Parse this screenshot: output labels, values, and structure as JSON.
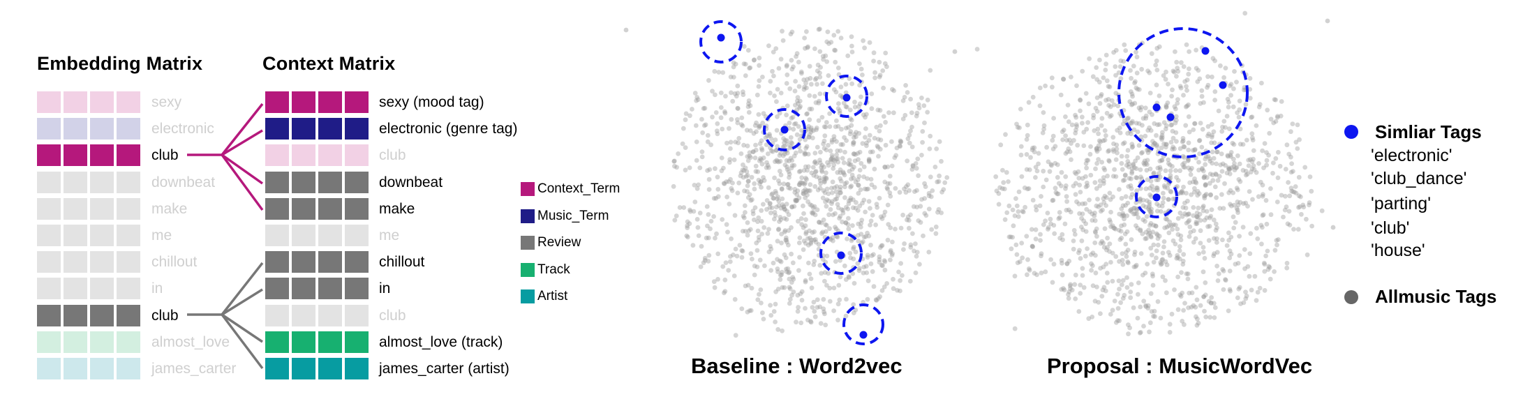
{
  "embedding_title": "Embedding Matrix",
  "context_title": "Context Matrix",
  "embedding_rows": [
    {
      "label": "sexy",
      "color": "#f2d1e5",
      "active": false
    },
    {
      "label": "electronic",
      "color": "#d2d2e8",
      "active": false
    },
    {
      "label": "club",
      "color": "#b5187c",
      "active": true
    },
    {
      "label": "downbeat",
      "color": "#e3e3e3",
      "active": false
    },
    {
      "label": "make",
      "color": "#e3e3e3",
      "active": false
    },
    {
      "label": "me",
      "color": "#e3e3e3",
      "active": false
    },
    {
      "label": "chillout",
      "color": "#e3e3e3",
      "active": false
    },
    {
      "label": "in",
      "color": "#e3e3e3",
      "active": false
    },
    {
      "label": "club",
      "color": "#777777",
      "active": true
    },
    {
      "label": "almost_love",
      "color": "#d3efe0",
      "active": false
    },
    {
      "label": "james_carter",
      "color": "#cde8ec",
      "active": false
    }
  ],
  "context_rows": [
    {
      "label": "sexy (mood tag)",
      "color": "#b5187c",
      "active": true
    },
    {
      "label": "electronic (genre tag)",
      "color": "#1f1c87",
      "active": true
    },
    {
      "label": "club",
      "color": "#f2d1e5",
      "active": false
    },
    {
      "label": "downbeat",
      "color": "#777777",
      "active": true
    },
    {
      "label": "make",
      "color": "#777777",
      "active": true
    },
    {
      "label": "me",
      "color": "#e3e3e3",
      "active": false
    },
    {
      "label": "chillout",
      "color": "#777777",
      "active": true
    },
    {
      "label": "in",
      "color": "#777777",
      "active": true
    },
    {
      "label": "club",
      "color": "#e3e3e3",
      "active": false
    },
    {
      "label": "almost_love (track)",
      "color": "#17b070",
      "active": true
    },
    {
      "label": "james_carter (artist)",
      "color": "#079ca1",
      "active": true
    }
  ],
  "term_legend": [
    {
      "label": "Context_Term",
      "color": "#b5187c"
    },
    {
      "label": "Music_Term",
      "color": "#1f1c87"
    },
    {
      "label": "Review",
      "color": "#777777"
    },
    {
      "label": "Track",
      "color": "#17b070"
    },
    {
      "label": "Artist",
      "color": "#079ca1"
    }
  ],
  "plots": [
    {
      "title": "Baseline : Word2vec"
    },
    {
      "title": "Proposal : MusicWordVec"
    }
  ],
  "right_legend": {
    "similar_head": "Simliar Tags",
    "similar_color": "#0d16f0",
    "similar_items": [
      "'electronic'",
      "'club_dance'",
      "'parting'",
      "'club'",
      "'house'"
    ],
    "allmusic_head": "Allmusic Tags",
    "allmusic_color": "#666666"
  }
}
